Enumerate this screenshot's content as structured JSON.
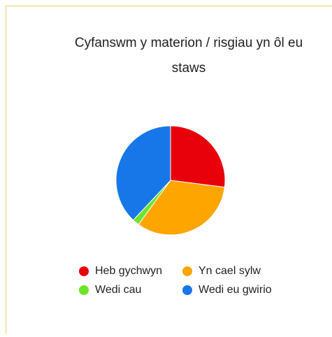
{
  "chart_data": {
    "type": "pie",
    "title_lines": [
      "Cyfanswm y materion / risgiau yn ôl eu",
      "staws"
    ],
    "categories": [
      "Heb gychwyn",
      "Yn cael sylw",
      "Wedi cau",
      "Wedi eu gwirio"
    ],
    "values": [
      27,
      33,
      2,
      38
    ],
    "colors": [
      "#e8000b",
      "#ffa500",
      "#6ee32b",
      "#1877e8"
    ]
  }
}
